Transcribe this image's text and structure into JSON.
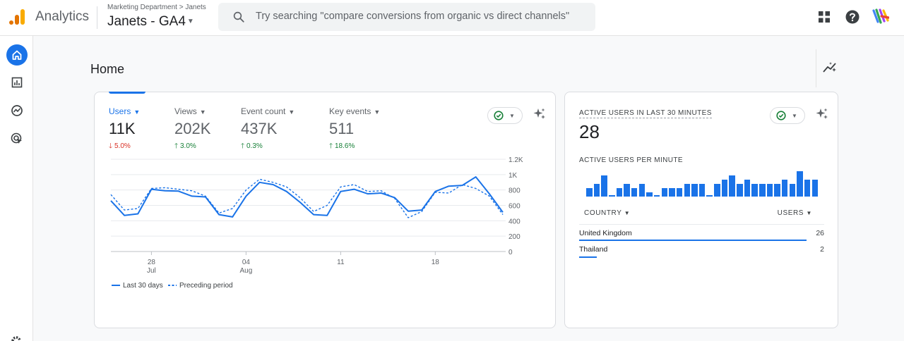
{
  "header": {
    "app_title": "Analytics",
    "breadcrumb": "Marketing Department > Janets",
    "property": "Janets - GA4",
    "search_placeholder": "Try searching \"compare conversions from organic vs direct channels\""
  },
  "page": {
    "title": "Home"
  },
  "metrics": [
    {
      "label": "Users",
      "value": "11K",
      "change": "5.0%",
      "direction": "down"
    },
    {
      "label": "Views",
      "value": "202K",
      "change": "3.0%",
      "direction": "up"
    },
    {
      "label": "Event count",
      "value": "437K",
      "change": "0.3%",
      "direction": "up"
    },
    {
      "label": "Key events",
      "value": "511",
      "change": "18.6%",
      "direction": "up"
    }
  ],
  "chart_data": {
    "type": "line",
    "y_tick_labels": [
      "1.2K",
      "1K",
      "800",
      "600",
      "400",
      "200",
      "0"
    ],
    "y_ticks": [
      1200,
      1000,
      800,
      600,
      400,
      200,
      0
    ],
    "ylim": [
      0,
      1200
    ],
    "x_tick_labels": [
      {
        "day": "28",
        "month": "Jul",
        "index": 3
      },
      {
        "day": "04",
        "month": "Aug",
        "index": 10
      },
      {
        "day": "11",
        "month": "",
        "index": 17
      },
      {
        "day": "18",
        "month": "",
        "index": 24
      }
    ],
    "grid": true,
    "legend": "bottom-left",
    "series": [
      {
        "name": "Last 30 days",
        "style": "solid",
        "color": "#1a73e8",
        "values": [
          660,
          470,
          490,
          810,
          790,
          785,
          720,
          710,
          480,
          450,
          720,
          900,
          870,
          780,
          640,
          480,
          470,
          780,
          810,
          750,
          760,
          700,
          525,
          540,
          780,
          850,
          860,
          970,
          750,
          510
        ]
      },
      {
        "name": "Preceding period",
        "style": "dashed",
        "color": "#1a73e8",
        "values": [
          740,
          540,
          560,
          820,
          830,
          810,
          790,
          720,
          500,
          560,
          800,
          940,
          900,
          840,
          700,
          520,
          600,
          840,
          870,
          780,
          790,
          690,
          440,
          520,
          770,
          760,
          870,
          820,
          720,
          480
        ]
      }
    ]
  },
  "realtime": {
    "title": "ACTIVE USERS IN LAST 30 MINUTES",
    "value": "28",
    "per_minute_label": "ACTIVE USERS PER MINUTE",
    "per_minute": [
      2,
      3,
      5,
      0,
      2,
      3,
      2,
      3,
      1,
      0,
      2,
      2,
      2,
      3,
      3,
      3,
      0,
      3,
      4,
      5,
      3,
      4,
      3,
      3,
      3,
      3,
      4,
      3,
      6,
      4,
      4
    ],
    "table": {
      "col_country": "COUNTRY",
      "col_users": "USERS",
      "rows": [
        {
          "country": "United Kingdom",
          "users": "26",
          "share": 0.929
        },
        {
          "country": "Thailand",
          "users": "2",
          "share": 0.071
        }
      ]
    }
  }
}
